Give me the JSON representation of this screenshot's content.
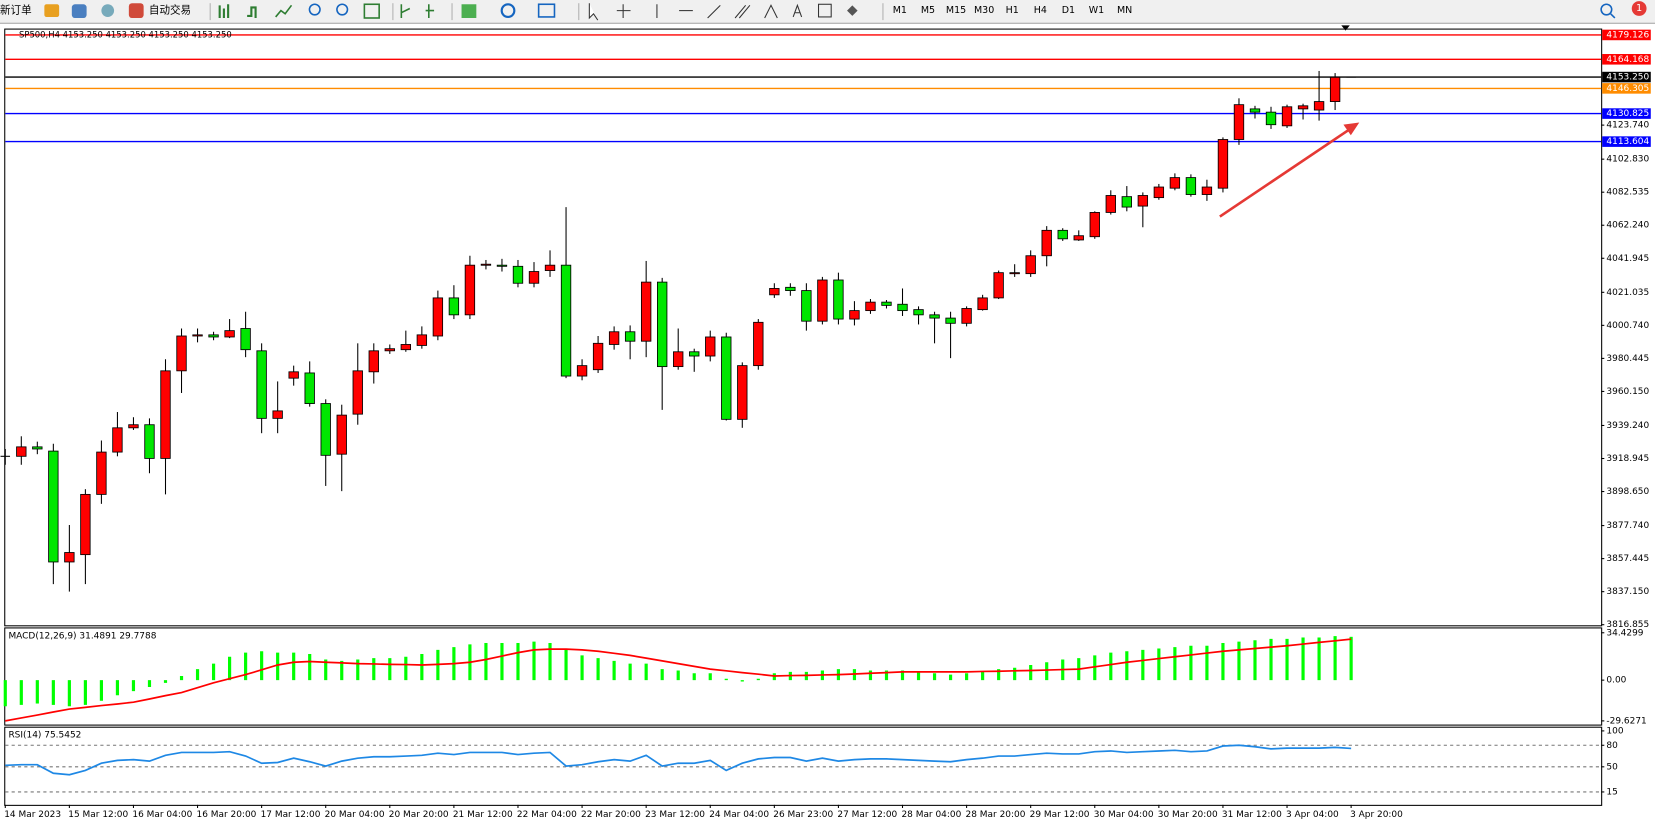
{
  "ui": {
    "new_order": "新订单",
    "auto_trading": "自动交易",
    "timeframes": [
      "M1",
      "M5",
      "M15",
      "M30",
      "H1",
      "H4",
      "D1",
      "W1",
      "MN"
    ],
    "notification": "1"
  },
  "chart_data": [
    {
      "type": "candlestick",
      "title": "SP500,H4  4153.250 4153.250 4153.250 4153.250",
      "categories": [
        "14 Mar 2023",
        null,
        null,
        null,
        "15 Mar 12:00",
        null,
        null,
        null,
        "16 Mar 04:00",
        null,
        null,
        null,
        "16 Mar 20:00",
        null,
        null,
        null,
        "17 Mar 12:00",
        null,
        null,
        null,
        "20 Mar 04:00",
        null,
        null,
        null,
        "20 Mar 20:00",
        null,
        null,
        null,
        "21 Mar 12:00",
        null,
        null,
        null,
        "22 Mar 04:00",
        null,
        null,
        null,
        "22 Mar 20:00",
        null,
        null,
        null,
        "23 Mar 12:00",
        null,
        null,
        null,
        "24 Mar 04:00",
        null,
        null,
        null,
        "26 Mar 23:00",
        null,
        null,
        null,
        "27 Mar 12:00",
        null,
        null,
        null,
        "28 Mar 04:00",
        null,
        null,
        null,
        "28 Mar 20:00",
        null,
        null,
        null,
        "29 Mar 12:00",
        null,
        null,
        null,
        "30 Mar 04:00",
        null,
        null,
        null,
        "30 Mar 20:00",
        null,
        null,
        null,
        "31 Mar 12:00",
        null,
        null,
        null,
        "3 Apr 04:00",
        null,
        null,
        null,
        "3 Apr 20:00"
      ],
      "open": [
        3920.3,
        3920.3,
        3926.1,
        3923.5,
        3855.4,
        3859.9,
        3896.9,
        3922.9,
        3937.8,
        3939.7,
        3919.0,
        3972.8,
        3994.2,
        3994.9,
        3993.6,
        3998.8,
        3985.1,
        3943.6,
        3968.3,
        3971.5,
        3952.7,
        3921.6,
        3946.2,
        3972.2,
        3985.1,
        3985.8,
        3988.4,
        3994.2,
        4017.6,
        4007.2,
        4037.7,
        4037.7,
        4037.0,
        4026.6,
        4034.4,
        4037.7,
        3969.6,
        3973.5,
        3989.0,
        3996.8,
        3991.0,
        4027.3,
        3975.4,
        3984.5,
        3981.9,
        3993.6,
        3943.0,
        3976.0,
        4019.5,
        4024.1,
        4022.1,
        4003.3,
        4028.6,
        4004.6,
        4009.8,
        4015.0,
        4013.7,
        4010.4,
        4007.2,
        4005.2,
        4002.0,
        4010.4,
        4017.6,
        4032.5,
        4032.5,
        4043.5,
        4059.1,
        4053.2,
        4055.2,
        4070.1,
        4079.8,
        4074.0,
        4079.2,
        4085.0,
        4091.5,
        4081.1,
        4085.0,
        4114.9,
        4133.7,
        4131.7,
        4123.3,
        4133.7,
        4133.0,
        4138.2,
        4153.25
      ],
      "high": [
        3924.8,
        3932.6,
        3929.3,
        3928.0,
        3878.1,
        3900.1,
        3930.0,
        3947.5,
        3944.3,
        3943.6,
        3979.9,
        3998.8,
        3998.8,
        3996.8,
        4004.6,
        4009.1,
        3989.7,
        3966.3,
        3976.0,
        3978.6,
        3955.3,
        3952.0,
        3989.7,
        3989.7,
        3989.0,
        3997.5,
        4000.1,
        4022.1,
        4025.4,
        4043.5,
        4040.9,
        4041.6,
        4040.9,
        4039.6,
        4046.8,
        4073.4,
        3979.9,
        3994.2,
        4000.1,
        4000.7,
        4040.3,
        4029.9,
        3998.8,
        3986.4,
        3997.5,
        3996.2,
        3978.0,
        4004.6,
        4026.6,
        4026.6,
        4026.6,
        4030.5,
        4033.1,
        4015.6,
        4016.9,
        4016.3,
        4023.4,
        4012.4,
        4009.1,
        4009.1,
        4012.4,
        4019.5,
        4034.4,
        4038.3,
        4046.8,
        4061.7,
        4060.4,
        4059.1,
        4070.8,
        4083.7,
        4086.3,
        4082.4,
        4087.6,
        4094.1,
        4093.5,
        4090.2,
        4116.2,
        4140.2,
        4135.6,
        4135.0,
        4136.3,
        4136.9,
        4157.0,
        4155.7,
        4153.25
      ],
      "low": [
        3915.1,
        3915.1,
        3921.6,
        3841.8,
        3837.2,
        3841.8,
        3891.1,
        3920.3,
        3936.5,
        3909.9,
        3896.9,
        3959.2,
        3990.3,
        3991.6,
        3992.9,
        3981.2,
        3934.5,
        3934.5,
        3963.7,
        3950.8,
        3902.1,
        3898.9,
        3939.7,
        3965.0,
        3983.2,
        3984.5,
        3986.4,
        3991.6,
        4004.6,
        4004.6,
        4035.1,
        4033.8,
        4024.1,
        4024.1,
        4030.5,
        3968.3,
        3967.0,
        3971.5,
        3985.8,
        3979.9,
        3981.2,
        3948.8,
        3973.5,
        3972.2,
        3978.6,
        3942.3,
        3937.8,
        3973.5,
        4017.6,
        4018.9,
        3997.5,
        4001.3,
        4001.3,
        4000.7,
        4007.8,
        4011.1,
        4006.5,
        4001.3,
        3989.7,
        3980.6,
        4000.1,
        4009.8,
        4016.9,
        4030.5,
        4030.5,
        4037.0,
        4052.6,
        4052.6,
        4053.9,
        4068.8,
        4070.8,
        4061.0,
        4077.9,
        4083.7,
        4079.8,
        4077.2,
        4082.4,
        4111.6,
        4127.8,
        4121.4,
        4122.0,
        4127.2,
        4126.5,
        4133.0,
        4153.25
      ],
      "close": [
        3920.3,
        3926.1,
        3924.8,
        3855.4,
        3861.2,
        3896.9,
        3922.9,
        3937.8,
        3939.7,
        3919.0,
        3972.8,
        3994.2,
        3994.9,
        3993.6,
        3997.5,
        3985.8,
        3943.6,
        3948.2,
        3972.2,
        3952.7,
        3920.9,
        3945.6,
        3972.8,
        3985.1,
        3986.4,
        3989.0,
        3994.9,
        4017.6,
        4007.2,
        4037.7,
        4038.3,
        4037.0,
        4026.6,
        4033.8,
        4037.7,
        3969.6,
        3976.0,
        3989.7,
        3996.8,
        3991.0,
        4027.3,
        3975.4,
        3984.5,
        3981.9,
        3993.6,
        3943.0,
        3976.0,
        4002.6,
        4023.4,
        4022.1,
        4003.3,
        4028.6,
        4004.6,
        4009.8,
        4015.0,
        4013.0,
        4009.8,
        4007.2,
        4005.2,
        4002.0,
        4011.1,
        4017.6,
        4033.1,
        4033.1,
        4043.5,
        4059.1,
        4053.9,
        4055.8,
        4070.1,
        4080.5,
        4073.4,
        4080.5,
        4085.7,
        4091.5,
        4081.1,
        4085.7,
        4114.9,
        4136.3,
        4131.7,
        4124.0,
        4135.0,
        4135.6,
        4138.2,
        4153.1,
        4153.25
      ],
      "up_color": "#ff0000",
      "down_color": "#00e600",
      "ylim": [
        3816.5,
        4182.4
      ],
      "yticks": [
        {
          "value": 4123.74,
          "label": "4123.740"
        },
        {
          "value": 4102.83,
          "label": "4102.830"
        },
        4082.535,
        {
          "value": 4062.24,
          "label": "4062.240"
        },
        4041.945,
        4021.035,
        {
          "value": 4000.74,
          "label": "4000.740"
        },
        3980.445,
        {
          "value": 3960.15,
          "label": "3960.150"
        },
        {
          "value": 3939.24,
          "label": "3939.240"
        },
        3918.945,
        {
          "value": 3898.65,
          "label": "3898.650"
        },
        {
          "value": 3877.74,
          "label": "3877.740"
        },
        3857.445,
        {
          "value": 3837.15,
          "label": "3837.150"
        },
        3816.855
      ],
      "levels": [
        {
          "value": 4179.126,
          "color": "#ff0000"
        },
        {
          "value": 4164.168,
          "color": "#ff0000"
        },
        {
          "value": 4153.25,
          "label": "4153.250",
          "color": "#000000"
        },
        {
          "value": 4146.305,
          "color": "#ff8c00"
        },
        {
          "value": 4130.825,
          "color": "#0000ff"
        },
        {
          "value": 4113.604,
          "color": "#0000ff"
        }
      ]
    },
    {
      "type": "macd",
      "title": "MACD(12,26,9) 31.4891 29.7788",
      "series": [
        {
          "type": "bar",
          "color": "#00ff00",
          "values": [
            -19,
            -18,
            -17,
            -18,
            -19,
            -18,
            -15,
            -11,
            -8,
            -5,
            -2,
            3,
            8,
            12,
            17,
            20,
            21,
            20,
            20,
            19,
            15,
            14,
            15,
            16,
            16,
            17,
            19,
            22,
            24,
            26,
            27,
            27,
            27,
            28,
            27,
            22,
            18,
            16,
            14,
            12,
            12,
            8,
            7,
            5,
            5,
            1,
            -1,
            1,
            5,
            6,
            6,
            7,
            8,
            8,
            7,
            7,
            7,
            6,
            5,
            4,
            5,
            6,
            8,
            9,
            11,
            13,
            15,
            16,
            18,
            20,
            21,
            22,
            23,
            24,
            25,
            25,
            27,
            28,
            29,
            30,
            30,
            31,
            31,
            32,
            31.4891
          ]
        },
        {
          "type": "line",
          "color": "#ff0000",
          "values": [
            -29.6271,
            -27.5,
            -25.4,
            -23.2,
            -21,
            -19.8,
            -18.5,
            -17.3,
            -16,
            -13.7,
            -11.3,
            -9,
            -5.5,
            -2,
            1,
            4,
            7.5,
            11,
            13,
            13.5,
            13,
            12.5,
            12,
            11.8,
            11.5,
            11.3,
            11,
            11.5,
            12,
            13,
            15,
            17.5,
            20,
            22,
            22.5,
            22.5,
            22,
            21,
            19.5,
            18,
            16,
            14,
            12,
            10,
            8,
            6.8,
            5.5,
            4.3,
            3,
            3.3,
            3.5,
            3.8,
            4,
            4.5,
            5,
            5.5,
            6,
            6,
            6,
            6,
            6,
            6.3,
            6.5,
            6.8,
            7,
            7.3,
            7.7,
            8,
            9.7,
            11.3,
            13,
            14.3,
            15.7,
            17,
            18.3,
            19.7,
            21,
            22,
            23,
            24,
            25,
            26.2,
            27.4,
            28.6,
            29.7788
          ]
        }
      ],
      "ylim": [
        -32.3,
        36.8
      ],
      "yticks": [
        34.4299,
        {
          "value": 0,
          "label": "0.00"
        },
        -29.6271
      ]
    },
    {
      "type": "line",
      "title": "RSI(14) 75.5452",
      "color": "#1e88e5",
      "values": [
        52,
        53,
        53,
        41,
        39,
        45,
        55,
        59,
        60,
        58,
        66,
        70,
        70,
        70,
        71,
        65,
        55,
        56,
        62,
        57,
        51,
        58,
        62,
        64,
        64,
        65,
        66,
        69,
        67,
        70,
        70,
        70,
        67,
        69,
        70,
        51,
        53,
        57,
        60,
        58,
        66,
        51,
        55,
        55,
        59,
        45,
        55,
        61,
        63,
        63,
        58,
        62,
        58,
        60,
        61,
        61,
        60,
        59,
        58,
        57,
        60,
        62,
        65,
        65,
        67,
        69,
        68,
        68,
        71,
        72,
        70,
        71,
        72,
        73,
        71,
        72,
        79,
        80,
        78,
        75,
        76,
        76,
        76,
        77,
        75.5452
      ],
      "ylim": [
        0,
        100
      ],
      "yticks": [
        100,
        80,
        50,
        15
      ]
    }
  ]
}
